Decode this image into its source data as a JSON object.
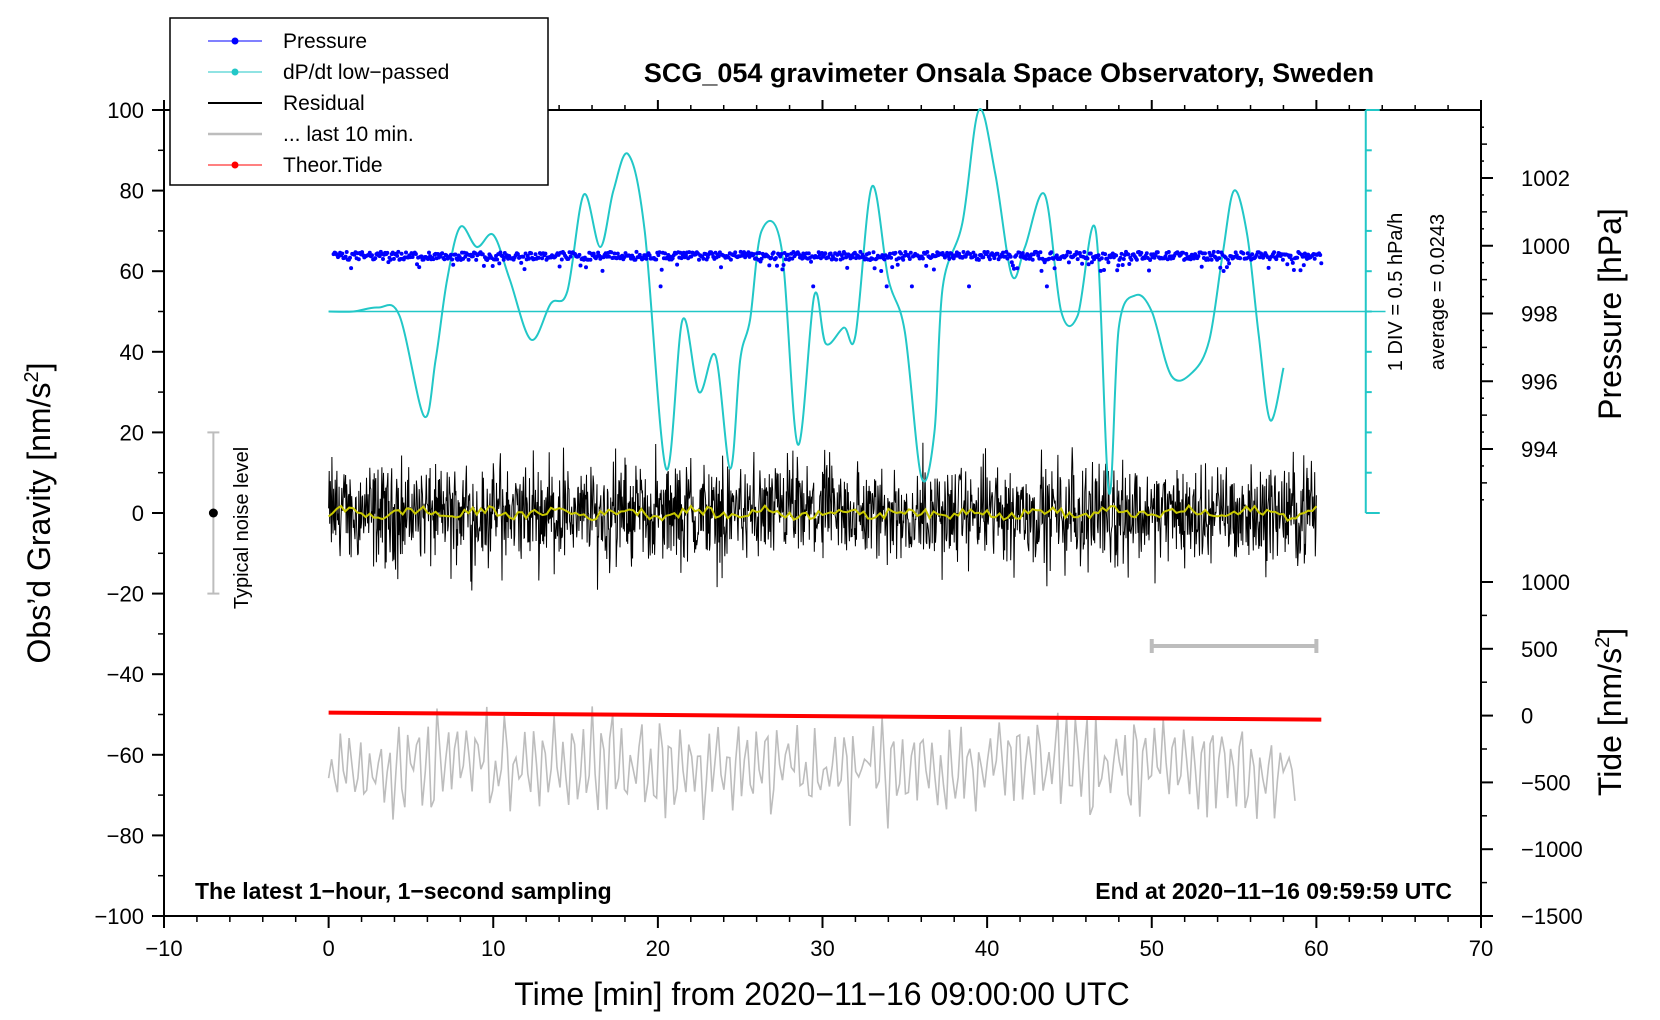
{
  "chart_data": {
    "type": "line",
    "title": "SCG_054 gravimeter Onsala Space Observatory, Sweden",
    "xlabel": "Time [min] from 2020−11−16 09:00:00 UTC",
    "ylabel_left": "Obs’d Gravity [nm/s",
    "ylabel_left_sup": "2",
    "ylabel_left_tail": "]",
    "ylabel_right_top": "Pressure [hPa]",
    "ylabel_right_bottom": "Tide [nm/s",
    "ylabel_right_bottom_sup": "2",
    "ylabel_right_bottom_tail": "]",
    "xlim": [
      -10,
      70
    ],
    "ylim": [
      -100,
      100
    ],
    "pressure_lim": [
      992,
      1004
    ],
    "tide_lim": [
      -1500,
      1500
    ],
    "x_ticks": [
      "−10",
      "0",
      "10",
      "20",
      "30",
      "40",
      "50",
      "60",
      "70"
    ],
    "x_tick_values": [
      -10,
      0,
      10,
      20,
      30,
      40,
      50,
      60,
      70
    ],
    "y_ticks": [
      "−100",
      "−80",
      "−60",
      "−40",
      "−20",
      "0",
      "20",
      "40",
      "60",
      "80",
      "100"
    ],
    "y_tick_values": [
      -100,
      -80,
      -60,
      -40,
      -20,
      0,
      20,
      40,
      60,
      80,
      100
    ],
    "pressure_ticks": [
      "994",
      "996",
      "998",
      "1000",
      "1002"
    ],
    "pressure_tick_values": [
      994,
      996,
      998,
      1000,
      1002
    ],
    "tide_ticks": [
      "−1500",
      "−1000",
      "−500",
      "0",
      "500",
      "1000"
    ],
    "tide_tick_values": [
      -1500,
      -1000,
      -500,
      0,
      500,
      1000
    ],
    "legend": [
      {
        "label": "Pressure",
        "color": "#0000ff",
        "marker": "dot"
      },
      {
        "label": "dP/dt low−passed",
        "color": "#22c7c7",
        "marker": "dot"
      },
      {
        "label": "Residual",
        "color": "#000000",
        "marker": "none"
      },
      {
        "label": "... last 10 min.",
        "color": "#bdbdbd",
        "marker": "none"
      },
      {
        "label": "Theor.Tide",
        "color": "#ff0000",
        "marker": "dot"
      }
    ],
    "annotations": {
      "noise_label": "Typical noise level",
      "noise_range": [
        -20,
        20
      ],
      "noise_x": -7,
      "div_label": "1 DIV = 0.5 hPa/h",
      "average_label": "average = 0.0243",
      "bottom_left": "The latest 1−hour, 1−second sampling",
      "bottom_right": "End at 2020−11−16 09:59:59 UTC",
      "last10_bar": [
        50,
        60
      ],
      "last10_bar_y": -33
    },
    "series": [
      {
        "name": "Pressure",
        "unit": "hPa",
        "color": "#0000ff",
        "x_range": [
          0.3,
          60.3
        ],
        "mean": 999.7,
        "scatter": 0.12,
        "outlier_low": 998.8
      },
      {
        "name": "dP/dt low-passed",
        "color": "#22c7c7",
        "baseline_y": 50,
        "x": [
          0.0,
          1.5,
          3.0,
          4.3,
          5.8,
          6.5,
          7.2,
          8.0,
          9.0,
          10.0,
          11.0,
          12.3,
          13.5,
          14.5,
          15.5,
          16.5,
          17.3,
          18.2,
          19.2,
          20.5,
          21.5,
          22.5,
          23.5,
          24.4,
          25.0,
          25.6,
          26.3,
          27.5,
          28.5,
          29.5,
          30.2,
          31.3,
          32.0,
          33.0,
          34.0,
          35.0,
          36.0,
          36.8,
          37.3,
          38.5,
          39.5,
          40.5,
          41.5,
          42.3,
          43.5,
          44.5,
          45.5,
          46.6,
          47.4,
          48.0,
          49.0,
          50.0,
          51.2,
          52.5,
          53.5,
          54.3,
          55.0,
          55.8,
          56.5,
          57.2,
          58.0
        ],
        "y": [
          50,
          50,
          51,
          49,
          24,
          38,
          58,
          71,
          66,
          69,
          58,
          43,
          52,
          55,
          79,
          66,
          80,
          89,
          70,
          11,
          48,
          30,
          39,
          11,
          38,
          48,
          70,
          66,
          17,
          54,
          42,
          46,
          44,
          81,
          58,
          45,
          9,
          20,
          56,
          72,
          100,
          84,
          59,
          66,
          79,
          50,
          49,
          70,
          5,
          46,
          54,
          50,
          34,
          35,
          43,
          64,
          80,
          69,
          44,
          23,
          36
        ]
      },
      {
        "name": "Residual",
        "color": "#000000",
        "x_range": [
          0,
          60
        ],
        "amplitude": 20
      },
      {
        "name": "Residual smoothed",
        "color": "#c8c800",
        "x_range": [
          0,
          60
        ],
        "amplitude": 2
      },
      {
        "name": "... last 10 min.",
        "color": "#bdbdbd",
        "x_range": [
          0,
          58.7
        ],
        "center": -63,
        "amplitude": 15
      },
      {
        "name": "Theor.Tide",
        "unit": "nm/s2",
        "color": "#ff0000",
        "x": [
          0,
          60.3
        ],
        "y": [
          22,
          -30
        ]
      }
    ]
  }
}
